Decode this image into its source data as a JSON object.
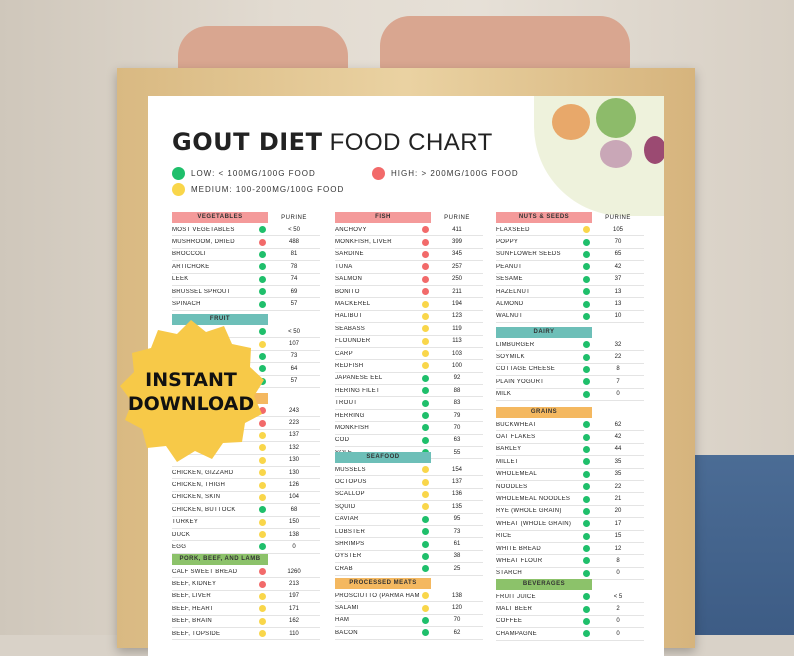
{
  "poster": {
    "title_bold": "GOUT DIET",
    "title_light": "FOOD CHART",
    "legend": [
      {
        "label": "LOW: < 100MG/100G FOOD",
        "color": "#1fbf6b"
      },
      {
        "label": "HIGH: > 200MG/100G FOOD",
        "color": "#f26a6a"
      },
      {
        "label": "MEDIUM: 100-200MG/100G FOOD",
        "color": "#f9d64a"
      }
    ],
    "purine_label": "PURINE"
  },
  "colors": {
    "low": "#1fbf6b",
    "medium": "#f9d64a",
    "high": "#f26a6a"
  },
  "badge": {
    "line1": "INSTANT",
    "line2": "DOWNLOAD",
    "color": "#f7c948"
  },
  "sections": {
    "vegetables": {
      "title": "VEGETABLES",
      "color": "#f49a9a",
      "items": [
        {
          "name": "MOST VEGETABLES",
          "level": "low",
          "value": "< 50"
        },
        {
          "name": "MUSHROOM, DRIED",
          "level": "high",
          "value": "488"
        },
        {
          "name": "BROCCOLI",
          "level": "low",
          "value": "81"
        },
        {
          "name": "ARTICHOKE",
          "level": "low",
          "value": "78"
        },
        {
          "name": "LEEK",
          "level": "low",
          "value": "74"
        },
        {
          "name": "BRUSSEL SPROUT",
          "level": "low",
          "value": "69"
        },
        {
          "name": "SPINACH",
          "level": "low",
          "value": "57"
        }
      ]
    },
    "fruit": {
      "title": "FRUIT",
      "color": "#6dbfb8",
      "items": [
        {
          "name": "",
          "level": "low",
          "value": "< 50"
        },
        {
          "name": "",
          "level": "medium",
          "value": "107"
        },
        {
          "name": "",
          "level": "low",
          "value": "73"
        },
        {
          "name": "",
          "level": "low",
          "value": "64"
        },
        {
          "name": "",
          "level": "low",
          "value": "57"
        }
      ]
    },
    "poultry": {
      "title": "",
      "color": "#f4b860",
      "items": [
        {
          "name": "",
          "level": "high",
          "value": "243"
        },
        {
          "name": "",
          "level": "high",
          "value": "223"
        },
        {
          "name": "",
          "level": "medium",
          "value": "137"
        },
        {
          "name": "",
          "level": "medium",
          "value": "132"
        },
        {
          "name": "",
          "level": "medium",
          "value": "130"
        },
        {
          "name": "CHICKEN, GIZZARD",
          "level": "medium",
          "value": "130"
        },
        {
          "name": "CHICKEN, THIGH",
          "level": "medium",
          "value": "126"
        },
        {
          "name": "CHICKEN, SKIN",
          "level": "medium",
          "value": "104"
        },
        {
          "name": "CHICKEN, BUTTOCK",
          "level": "low",
          "value": "68"
        },
        {
          "name": "TURKEY",
          "level": "medium",
          "value": "150"
        },
        {
          "name": "DUCK",
          "level": "medium",
          "value": "138"
        },
        {
          "name": "EGG",
          "level": "low",
          "value": "0"
        }
      ]
    },
    "pork": {
      "title": "PORK, BEEF, AND LAMB",
      "color": "#8cc26a",
      "items": [
        {
          "name": "CALF SWEET BREAD",
          "level": "high",
          "value": "1260"
        },
        {
          "name": "BEEF, KIDNEY",
          "level": "high",
          "value": "213"
        },
        {
          "name": "BEEF, LIVER",
          "level": "medium",
          "value": "197"
        },
        {
          "name": "BEEF, HEART",
          "level": "medium",
          "value": "171"
        },
        {
          "name": "BEEF, BRAIN",
          "level": "medium",
          "value": "162"
        },
        {
          "name": "BEEF, TOPSIDE",
          "level": "medium",
          "value": "110"
        }
      ]
    },
    "fish": {
      "title": "FISH",
      "color": "#f49a9a",
      "items": [
        {
          "name": "ANCHOVY",
          "level": "high",
          "value": "411"
        },
        {
          "name": "MONKFISH, LIVER",
          "level": "high",
          "value": "399"
        },
        {
          "name": "SARDINE",
          "level": "high",
          "value": "345"
        },
        {
          "name": "TUNA",
          "level": "high",
          "value": "257"
        },
        {
          "name": "SALMON",
          "level": "high",
          "value": "250"
        },
        {
          "name": "BONITO",
          "level": "high",
          "value": "211"
        },
        {
          "name": "MACKEREL",
          "level": "medium",
          "value": "194"
        },
        {
          "name": "HALIBUT",
          "level": "medium",
          "value": "123"
        },
        {
          "name": "SEABASS",
          "level": "medium",
          "value": "119"
        },
        {
          "name": "FLOUNDER",
          "level": "medium",
          "value": "113"
        },
        {
          "name": "CARP",
          "level": "medium",
          "value": "103"
        },
        {
          "name": "REDFISH",
          "level": "medium",
          "value": "100"
        },
        {
          "name": "JAPANESE EEL",
          "level": "low",
          "value": "92"
        },
        {
          "name": "HERING FILET",
          "level": "low",
          "value": "88"
        },
        {
          "name": "TROUT",
          "level": "low",
          "value": "83"
        },
        {
          "name": "HERRING",
          "level": "low",
          "value": "79"
        },
        {
          "name": "MONKFISH",
          "level": "low",
          "value": "70"
        },
        {
          "name": "COD",
          "level": "low",
          "value": "63"
        },
        {
          "name": "SOLE",
          "level": "low",
          "value": "55"
        }
      ]
    },
    "seafood": {
      "title": "SEAFOOD",
      "color": "#6dbfb8",
      "items": [
        {
          "name": "MUSSELS",
          "level": "medium",
          "value": "154"
        },
        {
          "name": "OCTOPUS",
          "level": "medium",
          "value": "137"
        },
        {
          "name": "SCALLOP",
          "level": "medium",
          "value": "136"
        },
        {
          "name": "SQUID",
          "level": "medium",
          "value": "135"
        },
        {
          "name": "CAVIAR",
          "level": "low",
          "value": "95"
        },
        {
          "name": "LOBSTER",
          "level": "low",
          "value": "73"
        },
        {
          "name": "SHRIMPS",
          "level": "low",
          "value": "61"
        },
        {
          "name": "OYSTER",
          "level": "low",
          "value": "38"
        },
        {
          "name": "CRAB",
          "level": "low",
          "value": "25"
        }
      ]
    },
    "processed": {
      "title": "PROCESSED MEATS",
      "color": "#f4b860",
      "items": [
        {
          "name": "PROSCIUTTO (PARMA HAM)",
          "level": "medium",
          "value": "138"
        },
        {
          "name": "SALAMI",
          "level": "medium",
          "value": "120"
        },
        {
          "name": "HAM",
          "level": "low",
          "value": "70"
        },
        {
          "name": "BACON",
          "level": "low",
          "value": "62"
        }
      ]
    },
    "nuts": {
      "title": "NUTS & SEEDS",
      "color": "#f49a9a",
      "items": [
        {
          "name": "FLAXSEED",
          "level": "medium",
          "value": "105"
        },
        {
          "name": "POPPY",
          "level": "low",
          "value": "70"
        },
        {
          "name": "SUNFLOWER SEEDS",
          "level": "low",
          "value": "65"
        },
        {
          "name": "PEANUT",
          "level": "low",
          "value": "42"
        },
        {
          "name": "SESAME",
          "level": "low",
          "value": "37"
        },
        {
          "name": "HAZELNUT",
          "level": "low",
          "value": "13"
        },
        {
          "name": "ALMOND",
          "level": "low",
          "value": "13"
        },
        {
          "name": "WALNUT",
          "level": "low",
          "value": "10"
        }
      ]
    },
    "dairy": {
      "title": "DAIRY",
      "color": "#6dbfb8",
      "items": [
        {
          "name": "LIMBURGER",
          "level": "low",
          "value": "32"
        },
        {
          "name": "SOYMILK",
          "level": "low",
          "value": "22"
        },
        {
          "name": "COTTAGE CHEESE",
          "level": "low",
          "value": "8"
        },
        {
          "name": "PLAIN YOGURT",
          "level": "low",
          "value": "7"
        },
        {
          "name": "MILK",
          "level": "low",
          "value": "0"
        }
      ]
    },
    "grains": {
      "title": "GRAINS",
      "color": "#f4b860",
      "items": [
        {
          "name": "BUCKWHEAT",
          "level": "low",
          "value": "62"
        },
        {
          "name": "OAT FLAKES",
          "level": "low",
          "value": "42"
        },
        {
          "name": "BARLEY",
          "level": "low",
          "value": "44"
        },
        {
          "name": "MILLET",
          "level": "low",
          "value": "35"
        },
        {
          "name": "WHOLEMEAL",
          "level": "low",
          "value": "35"
        },
        {
          "name": "NOODLES",
          "level": "low",
          "value": "22"
        },
        {
          "name": "WHOLEMEAL NOODLES",
          "level": "low",
          "value": "21"
        },
        {
          "name": "RYE (WHOLE GRAIN)",
          "level": "low",
          "value": "20"
        },
        {
          "name": "WHEAT (WHOLE GRAIN)",
          "level": "low",
          "value": "17"
        },
        {
          "name": "RICE",
          "level": "low",
          "value": "15"
        },
        {
          "name": "WHITE BREAD",
          "level": "low",
          "value": "12"
        },
        {
          "name": "WHEAT FLOUR",
          "level": "low",
          "value": "8"
        },
        {
          "name": "STARCH",
          "level": "low",
          "value": "0"
        }
      ]
    },
    "beverages": {
      "title": "BEVERAGES",
      "color": "#8cc26a",
      "items": [
        {
          "name": "FRUIT JUICE",
          "level": "low",
          "value": "< 5"
        },
        {
          "name": "MALT BEER",
          "level": "low",
          "value": "2"
        },
        {
          "name": "COFFEE",
          "level": "low",
          "value": "0"
        },
        {
          "name": "CHAMPAGNE",
          "level": "low",
          "value": "0"
        }
      ]
    }
  }
}
